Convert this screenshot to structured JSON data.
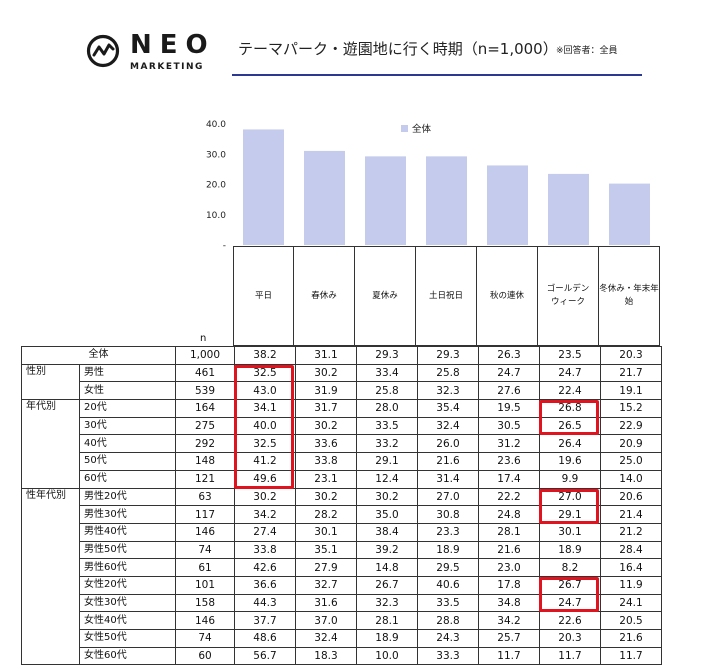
{
  "brand": {
    "name": "NEO",
    "sub": "MARKETING"
  },
  "title": "テーマパーク・遊園地に行く時期（n=1,000）",
  "title_note": "※回答者：全員",
  "n_label": "n",
  "colors": {
    "bar": "#c5cbec",
    "highlight": "#e0141e",
    "title_rule": "#2b3990"
  },
  "chart_data": {
    "type": "bar",
    "categories": [
      "平日",
      "春休み",
      "夏休み",
      "土日祝日",
      "秋の連休",
      "ゴールデンウィーク",
      "冬休み・年末年始"
    ],
    "category_labels": [
      [
        "平日"
      ],
      [
        "春休み"
      ],
      [
        "夏休み"
      ],
      [
        "土日祝日"
      ],
      [
        "秋の連休"
      ],
      [
        "ゴールデン",
        "ウィーク"
      ],
      [
        "冬休み・年末年",
        "始"
      ]
    ],
    "series": [
      {
        "name": "全体",
        "values": [
          38.2,
          31.1,
          29.3,
          29.3,
          26.3,
          23.5,
          20.3
        ]
      }
    ],
    "ylim": [
      0,
      40
    ],
    "yticks": [
      "-",
      "10.0",
      "20.0",
      "30.0",
      "40.0"
    ],
    "ytick_values": [
      0,
      10,
      20,
      30,
      40
    ],
    "legend": "top-right"
  },
  "table": {
    "rows": [
      {
        "group": "",
        "label": "全体",
        "n": "1,000",
        "values": [
          "38.2",
          "31.1",
          "29.3",
          "29.3",
          "26.3",
          "23.5",
          "20.3"
        ]
      },
      {
        "group": "性別",
        "label": "男性",
        "n": "461",
        "values": [
          "32.5",
          "30.2",
          "33.4",
          "25.8",
          "24.7",
          "24.7",
          "21.7"
        ]
      },
      {
        "group": "",
        "label": "女性",
        "n": "539",
        "values": [
          "43.0",
          "31.9",
          "25.8",
          "32.3",
          "27.6",
          "22.4",
          "19.1"
        ]
      },
      {
        "group": "年代別",
        "label": "20代",
        "n": "164",
        "values": [
          "34.1",
          "31.7",
          "28.0",
          "35.4",
          "19.5",
          "26.8",
          "15.2"
        ]
      },
      {
        "group": "",
        "label": "30代",
        "n": "275",
        "values": [
          "40.0",
          "30.2",
          "33.5",
          "32.4",
          "30.5",
          "26.5",
          "22.9"
        ]
      },
      {
        "group": "",
        "label": "40代",
        "n": "292",
        "values": [
          "32.5",
          "33.6",
          "33.2",
          "26.0",
          "31.2",
          "26.4",
          "20.9"
        ]
      },
      {
        "group": "",
        "label": "50代",
        "n": "148",
        "values": [
          "41.2",
          "33.8",
          "29.1",
          "21.6",
          "23.6",
          "19.6",
          "25.0"
        ]
      },
      {
        "group": "",
        "label": "60代",
        "n": "121",
        "values": [
          "49.6",
          "23.1",
          "12.4",
          "31.4",
          "17.4",
          "9.9",
          "14.0"
        ]
      },
      {
        "group": "性年代別",
        "label": "男性20代",
        "n": "63",
        "values": [
          "30.2",
          "30.2",
          "30.2",
          "27.0",
          "22.2",
          "27.0",
          "20.6"
        ]
      },
      {
        "group": "",
        "label": "男性30代",
        "n": "117",
        "values": [
          "34.2",
          "28.2",
          "35.0",
          "30.8",
          "24.8",
          "29.1",
          "21.4"
        ]
      },
      {
        "group": "",
        "label": "男性40代",
        "n": "146",
        "values": [
          "27.4",
          "30.1",
          "38.4",
          "23.3",
          "28.1",
          "30.1",
          "21.2"
        ]
      },
      {
        "group": "",
        "label": "男性50代",
        "n": "74",
        "values": [
          "33.8",
          "35.1",
          "39.2",
          "18.9",
          "21.6",
          "18.9",
          "28.4"
        ]
      },
      {
        "group": "",
        "label": "男性60代",
        "n": "61",
        "values": [
          "42.6",
          "27.9",
          "14.8",
          "29.5",
          "23.0",
          "8.2",
          "16.4"
        ]
      },
      {
        "group": "",
        "label": "女性20代",
        "n": "101",
        "values": [
          "36.6",
          "32.7",
          "26.7",
          "40.6",
          "17.8",
          "26.7",
          "11.9"
        ]
      },
      {
        "group": "",
        "label": "女性30代",
        "n": "158",
        "values": [
          "44.3",
          "31.6",
          "32.3",
          "33.5",
          "34.8",
          "24.7",
          "24.1"
        ]
      },
      {
        "group": "",
        "label": "女性40代",
        "n": "146",
        "values": [
          "37.7",
          "37.0",
          "28.1",
          "28.8",
          "34.2",
          "22.6",
          "20.5"
        ]
      },
      {
        "group": "",
        "label": "女性50代",
        "n": "74",
        "values": [
          "48.6",
          "32.4",
          "18.9",
          "24.3",
          "25.7",
          "20.3",
          "21.6"
        ]
      },
      {
        "group": "",
        "label": "女性60代",
        "n": "60",
        "values": [
          "56.7",
          "18.3",
          "10.0",
          "33.3",
          "11.7",
          "11.7",
          "11.7"
        ]
      }
    ],
    "highlights": [
      {
        "col": 0,
        "rows": [
          1,
          7
        ]
      },
      {
        "col": 5,
        "rows": [
          3,
          4
        ]
      },
      {
        "col": 5,
        "rows": [
          8,
          9
        ]
      },
      {
        "col": 5,
        "rows": [
          13,
          14
        ]
      }
    ]
  }
}
